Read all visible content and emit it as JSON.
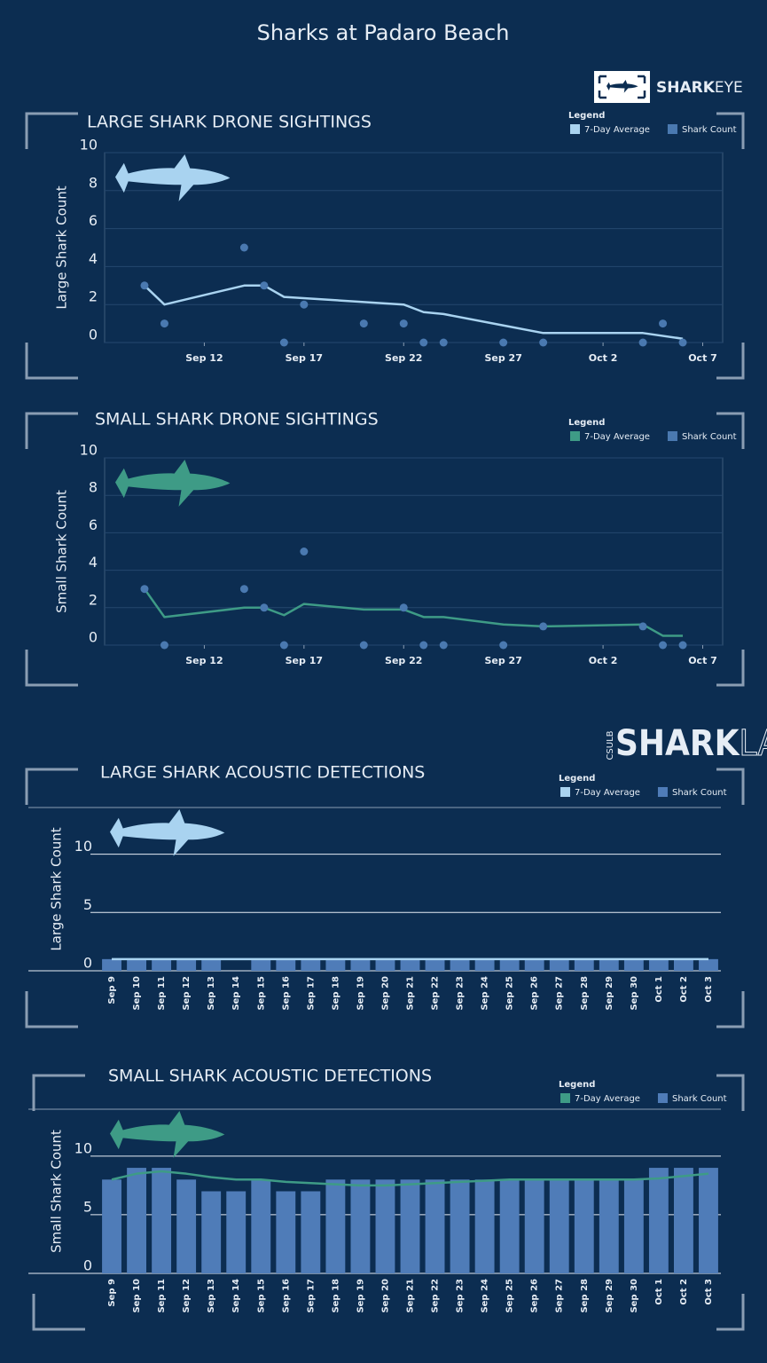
{
  "title": "Sharks at Padaro Beach",
  "logos": {
    "sharkeye": [
      "SHARK",
      "EYE"
    ],
    "sharklab": {
      "org": "CSULB",
      "name": [
        "SHARK",
        "LAB"
      ]
    }
  },
  "chart_data": [
    {
      "type": "line",
      "title": "LARGE SHARK DRONE SIGHTINGS",
      "ylabel": "Large Shark Count",
      "legend_title": "Legend",
      "xlim": [
        "Sep 7",
        "Oct 8"
      ],
      "xticks": [
        "Sep 12",
        "Sep 17",
        "Sep 22",
        "Sep 27",
        "Oct 2",
        "Oct 7"
      ],
      "ylim": [
        0,
        10
      ],
      "yticks": [
        0,
        2,
        4,
        6,
        8,
        10
      ],
      "grid": true,
      "series": [
        {
          "name": "7-Day Average",
          "type": "line",
          "color": "#a9d3f0",
          "x": [
            "Sep 9",
            "Sep 10",
            "Sep 14",
            "Sep 15",
            "Sep 16",
            "Sep 22",
            "Sep 23",
            "Sep 24",
            "Sep 27",
            "Sep 29",
            "Oct 4",
            "Oct 6"
          ],
          "values": [
            3,
            2,
            3,
            3,
            2.4,
            2,
            1.6,
            1.5,
            0.9,
            0.5,
            0.5,
            0.2
          ]
        },
        {
          "name": "Shark Count",
          "type": "scatter",
          "color": "#4a79b0",
          "x": [
            "Sep 9",
            "Sep 10",
            "Sep 14",
            "Sep 15",
            "Sep 16",
            "Sep 17",
            "Sep 20",
            "Sep 22",
            "Sep 23",
            "Sep 24",
            "Sep 27",
            "Sep 29",
            "Oct 4",
            "Oct 5",
            "Oct 6"
          ],
          "values": [
            3,
            1,
            5,
            3,
            0,
            2,
            1,
            1,
            0,
            0,
            0,
            0,
            0,
            1,
            0
          ]
        }
      ]
    },
    {
      "type": "line",
      "title": "SMALL SHARK DRONE SIGHTINGS",
      "ylabel": "Small Shark Count",
      "legend_title": "Legend",
      "xlim": [
        "Sep 7",
        "Oct 8"
      ],
      "xticks": [
        "Sep 12",
        "Sep 17",
        "Sep 22",
        "Sep 27",
        "Oct 2",
        "Oct 7"
      ],
      "ylim": [
        0,
        10
      ],
      "yticks": [
        0,
        2,
        4,
        6,
        8,
        10
      ],
      "grid": true,
      "series": [
        {
          "name": "7-Day Average",
          "type": "line",
          "color": "#3e9b86",
          "x": [
            "Sep 9",
            "Sep 10",
            "Sep 14",
            "Sep 15",
            "Sep 16",
            "Sep 17",
            "Sep 20",
            "Sep 22",
            "Sep 23",
            "Sep 24",
            "Sep 27",
            "Sep 29",
            "Oct 4",
            "Oct 5",
            "Oct 6"
          ],
          "values": [
            3,
            1.5,
            2,
            2,
            1.6,
            2.2,
            1.9,
            1.9,
            1.5,
            1.5,
            1.1,
            1,
            1.1,
            0.5,
            0.5
          ]
        },
        {
          "name": "Shark Count",
          "type": "scatter",
          "color": "#4a79b0",
          "x": [
            "Sep 9",
            "Sep 10",
            "Sep 14",
            "Sep 15",
            "Sep 16",
            "Sep 17",
            "Sep 20",
            "Sep 22",
            "Sep 23",
            "Sep 24",
            "Sep 27",
            "Sep 29",
            "Oct 4",
            "Oct 5",
            "Oct 6"
          ],
          "values": [
            3,
            0,
            3,
            2,
            0,
            5,
            0,
            2,
            0,
            0,
            0,
            1,
            1,
            0,
            0
          ]
        }
      ]
    },
    {
      "type": "bar",
      "title": "LARGE SHARK ACOUSTIC DETECTIONS",
      "ylabel": "Large Shark Count",
      "legend_title": "Legend",
      "categories": [
        "Sep 9",
        "Sep 10",
        "Sep 11",
        "Sep 12",
        "Sep 13",
        "Sep 14",
        "Sep 15",
        "Sep 16",
        "Sep 17",
        "Sep 18",
        "Sep 19",
        "Sep 20",
        "Sep 21",
        "Sep 22",
        "Sep 23",
        "Sep 24",
        "Sep 25",
        "Sep 26",
        "Sep 27",
        "Sep 28",
        "Sep 29",
        "Sep 30",
        "Oct 1",
        "Oct 2",
        "Oct 3"
      ],
      "ylim": [
        0,
        14
      ],
      "yticks": [
        0,
        5,
        10
      ],
      "grid": true,
      "series": [
        {
          "name": "7-Day Average",
          "type": "line",
          "color": "#a9d3f0",
          "values": [
            1,
            1,
            1,
            1,
            1,
            1,
            1,
            1,
            1,
            1,
            1,
            1,
            1,
            1,
            1,
            1,
            1,
            1,
            1,
            1,
            1,
            1,
            1,
            1,
            1
          ]
        },
        {
          "name": "Shark Count",
          "type": "bar",
          "color": "#4f7cb8",
          "values": [
            1,
            1,
            1,
            1,
            1,
            0,
            1,
            1,
            1,
            1,
            1,
            1,
            1,
            1,
            1,
            1,
            1,
            1,
            1,
            1,
            1,
            1,
            1,
            1,
            1
          ]
        }
      ]
    },
    {
      "type": "bar",
      "title": "SMALL SHARK ACOUSTIC DETECTIONS",
      "ylabel": "Small Shark Count",
      "legend_title": "Legend",
      "categories": [
        "Sep 9",
        "Sep 10",
        "Sep 11",
        "Sep 12",
        "Sep 13",
        "Sep 14",
        "Sep 15",
        "Sep 16",
        "Sep 17",
        "Sep 18",
        "Sep 19",
        "Sep 20",
        "Sep 21",
        "Sep 22",
        "Sep 23",
        "Sep 24",
        "Sep 25",
        "Sep 26",
        "Sep 27",
        "Sep 28",
        "Sep 29",
        "Sep 30",
        "Oct 1",
        "Oct 2",
        "Oct 3"
      ],
      "ylim": [
        0,
        14
      ],
      "yticks": [
        0,
        5,
        10
      ],
      "grid": true,
      "series": [
        {
          "name": "7-Day Average",
          "type": "line",
          "color": "#3e9b86",
          "values": [
            8,
            8.5,
            8.7,
            8.5,
            8.2,
            8,
            8,
            7.8,
            7.7,
            7.6,
            7.5,
            7.5,
            7.6,
            7.7,
            7.8,
            7.9,
            8,
            8,
            8,
            8,
            8,
            8,
            8.1,
            8.3,
            8.5
          ]
        },
        {
          "name": "Shark Count",
          "type": "bar",
          "color": "#4f7cb8",
          "values": [
            8,
            9,
            9,
            8,
            7,
            7,
            8,
            7,
            7,
            8,
            8,
            8,
            8,
            8,
            8,
            8,
            8,
            8,
            8,
            8,
            8,
            8,
            9,
            9,
            9
          ]
        }
      ]
    }
  ]
}
